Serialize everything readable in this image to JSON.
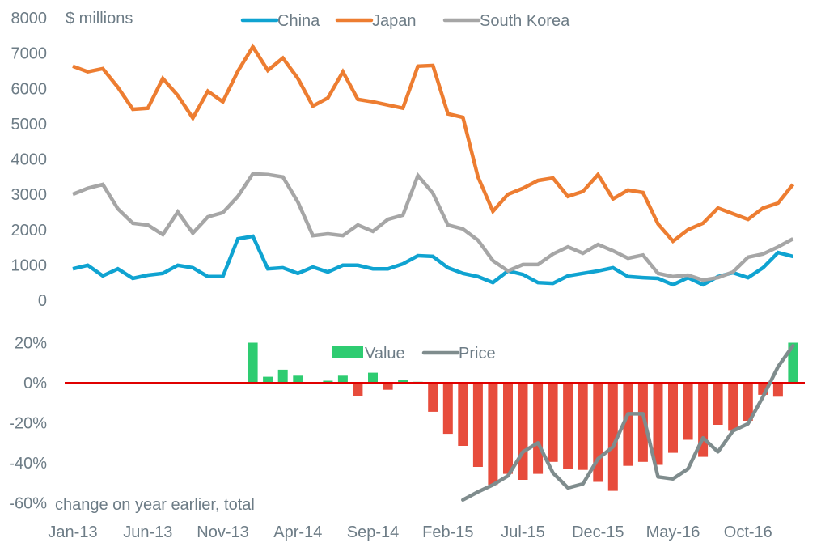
{
  "chart_data": [
    {
      "type": "line",
      "title": "",
      "ylabel": "$ millions",
      "xlabel": "",
      "ylim": [
        0,
        8000
      ],
      "yticks": [
        "0",
        "1000",
        "2000",
        "3000",
        "4000",
        "5000",
        "6000",
        "7000",
        "8000"
      ],
      "grid": false,
      "legend_position": "top",
      "series": [
        {
          "name": "China",
          "color": "#0fa3d1",
          "values": [
            890,
            990,
            690,
            890,
            620,
            710,
            760,
            990,
            920,
            670,
            670,
            1740,
            1810,
            890,
            920,
            760,
            940,
            800,
            990,
            990,
            890,
            890,
            1030,
            1260,
            1240,
            920,
            760,
            670,
            500,
            830,
            730,
            500,
            480,
            690,
            760,
            830,
            920,
            670,
            640,
            620,
            440,
            640,
            440,
            670,
            780,
            640,
            920,
            1350,
            1240
          ]
        },
        {
          "name": "Japan",
          "color": "#ed7d31",
          "values": [
            6630,
            6470,
            6560,
            6030,
            5410,
            5440,
            6280,
            5800,
            5160,
            5920,
            5620,
            6490,
            7180,
            6510,
            6860,
            6280,
            5500,
            5730,
            6470,
            5690,
            5620,
            5530,
            5440,
            6630,
            6650,
            5280,
            5180,
            3490,
            2520,
            3000,
            3170,
            3390,
            3460,
            2940,
            3080,
            3560,
            2870,
            3120,
            3050,
            2160,
            1670,
            2000,
            2180,
            2610,
            2450,
            2290,
            2610,
            2750,
            3280
          ]
        },
        {
          "name": "South Korea",
          "color": "#a6a6a6",
          "values": [
            3000,
            3170,
            3280,
            2590,
            2180,
            2130,
            1860,
            2500,
            1900,
            2360,
            2480,
            2940,
            3580,
            3560,
            3490,
            2780,
            1830,
            1880,
            1830,
            2130,
            1950,
            2290,
            2410,
            3530,
            3030,
            2130,
            2020,
            1700,
            1120,
            830,
            1010,
            1010,
            1310,
            1510,
            1330,
            1580,
            1400,
            1190,
            1280,
            760,
            670,
            710,
            570,
            640,
            800,
            1220,
            1310,
            1510,
            1740
          ]
        }
      ]
    },
    {
      "type": "bar",
      "title": "",
      "ylabel": "",
      "note": "change on year earlier, total",
      "xlabel": "",
      "ylim": [
        -60,
        20
      ],
      "yticks": [
        "-60%",
        "-40%",
        "-20%",
        "0%",
        "20%"
      ],
      "grid": false,
      "legend_position": "top-right",
      "zero_line_color": "#e00000",
      "positive_color": "#2ecc71",
      "negative_color": "#e74c3c",
      "series": [
        {
          "name": "Value",
          "kind": "bar",
          "values": [
            null,
            null,
            null,
            null,
            null,
            null,
            null,
            null,
            null,
            null,
            null,
            null,
            20,
            3,
            6.5,
            3.5,
            0,
            1,
            3.5,
            -6.5,
            5,
            -3.5,
            1.5,
            0.5,
            -14.5,
            -25.5,
            -31.5,
            -42,
            -51,
            -45.5,
            -48.5,
            -45.5,
            -39.5,
            -43,
            -43.5,
            -49.5,
            -54,
            -41.5,
            -39.5,
            -41,
            -35,
            -28.5,
            -37,
            -21,
            -24,
            -19,
            -6,
            -7,
            20
          ]
        },
        {
          "name": "Price",
          "kind": "line",
          "color": "#7f8c8d",
          "values": [
            null,
            null,
            null,
            null,
            null,
            null,
            null,
            null,
            null,
            null,
            null,
            null,
            null,
            null,
            null,
            null,
            null,
            null,
            null,
            null,
            null,
            null,
            null,
            null,
            null,
            null,
            -58.5,
            -54.5,
            -51,
            -46.5,
            -34.5,
            -30,
            -45,
            -52.5,
            -50.5,
            -38,
            -32,
            -15.5,
            -15.5,
            -47,
            -48,
            -43,
            -27.5,
            -34.5,
            -24,
            -20.5,
            -7,
            8,
            18.5
          ]
        }
      ]
    }
  ],
  "x_axis": {
    "categories_count": 49,
    "start": "Jan-13",
    "end": "Jan-17",
    "tick_labels": [
      "Jan-13",
      "Jun-13",
      "Nov-13",
      "Apr-14",
      "Sep-14",
      "Feb-15",
      "Jul-15",
      "Dec-15",
      "May-16",
      "Oct-16"
    ],
    "tick_every": 5
  }
}
